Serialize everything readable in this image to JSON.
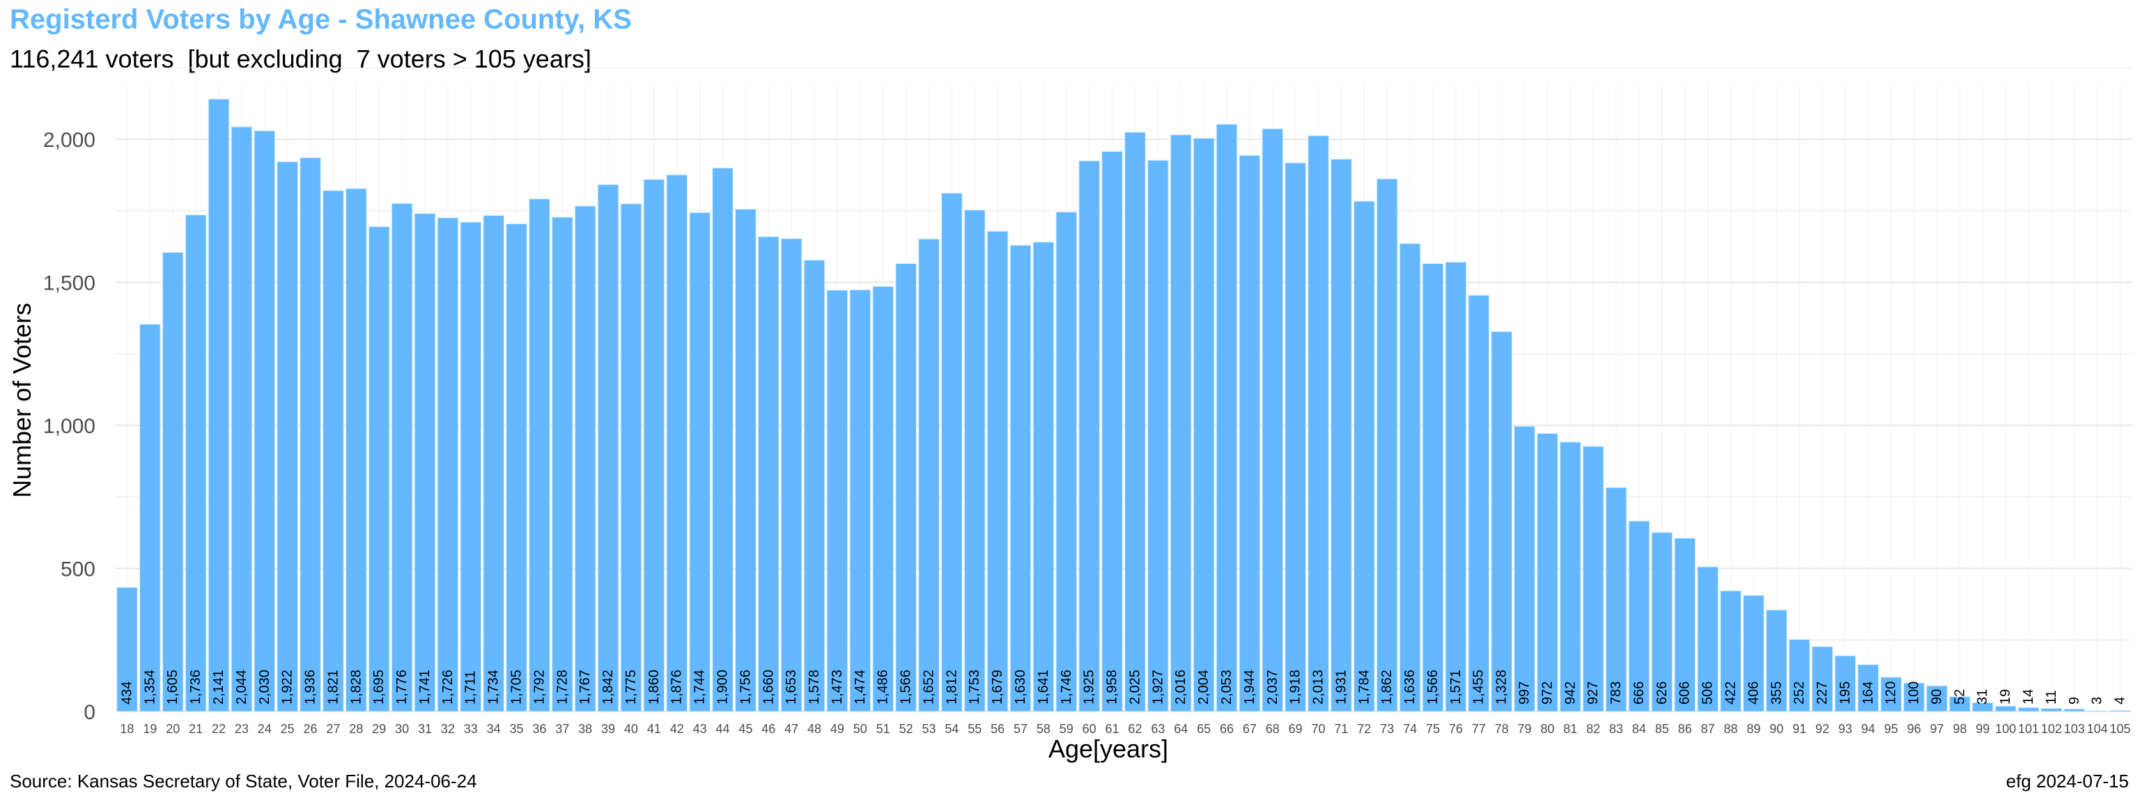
{
  "title": "Registerd Voters by Age - Shawnee County, KS",
  "subtitle": "116,241 voters  [but excluding  7 voters > 105 years]",
  "caption_left": "Source:  Kansas Secretary of State, Voter File, 2024-06-24",
  "caption_right": "efg 2024-07-15",
  "colors": {
    "bar": "#63B8FF",
    "grid": "#E6E6E6",
    "axis_text": "#4D4D4D",
    "title": "#63B8FF"
  },
  "chart_data": {
    "type": "bar",
    "xlabel": "Age[years]",
    "ylabel": "Number of Voters",
    "ylim": [
      0,
      2200
    ],
    "yticks": [
      0,
      500,
      1000,
      1500,
      2000
    ],
    "ytick_labels": [
      "0",
      "500",
      "1,000",
      "1,500",
      "2,000"
    ],
    "grid": true,
    "categories": [
      "18",
      "19",
      "20",
      "21",
      "22",
      "23",
      "24",
      "25",
      "26",
      "27",
      "28",
      "29",
      "30",
      "31",
      "32",
      "33",
      "34",
      "35",
      "36",
      "37",
      "38",
      "39",
      "40",
      "41",
      "42",
      "43",
      "44",
      "45",
      "46",
      "47",
      "48",
      "49",
      "50",
      "51",
      "52",
      "53",
      "54",
      "55",
      "56",
      "57",
      "58",
      "59",
      "60",
      "61",
      "62",
      "63",
      "64",
      "65",
      "66",
      "67",
      "68",
      "69",
      "70",
      "71",
      "72",
      "73",
      "74",
      "75",
      "76",
      "77",
      "78",
      "79",
      "80",
      "81",
      "82",
      "83",
      "84",
      "85",
      "86",
      "87",
      "88",
      "89",
      "90",
      "91",
      "92",
      "93",
      "94",
      "95",
      "96",
      "97",
      "98",
      "99",
      "100",
      "101",
      "102",
      "103",
      "104",
      "105"
    ],
    "values": [
      434,
      1354,
      1605,
      1736,
      2141,
      2044,
      2030,
      1922,
      1936,
      1821,
      1828,
      1695,
      1776,
      1741,
      1726,
      1711,
      1734,
      1705,
      1792,
      1728,
      1767,
      1842,
      1775,
      1860,
      1876,
      1744,
      1900,
      1756,
      1660,
      1653,
      1578,
      1473,
      1474,
      1486,
      1566,
      1652,
      1812,
      1753,
      1679,
      1630,
      1641,
      1746,
      1925,
      1958,
      2025,
      1927,
      2016,
      2004,
      2053,
      1944,
      2037,
      1918,
      2013,
      1931,
      1784,
      1862,
      1636,
      1566,
      1571,
      1455,
      1328,
      997,
      972,
      942,
      927,
      783,
      666,
      626,
      606,
      506,
      422,
      406,
      355,
      252,
      227,
      195,
      164,
      120,
      100,
      90,
      52,
      31,
      19,
      14,
      11,
      9,
      3,
      4
    ],
    "value_labels": [
      "434",
      "1,354",
      "1,605",
      "1,736",
      "2,141",
      "2,044",
      "2,030",
      "1,922",
      "1,936",
      "1,821",
      "1,828",
      "1,695",
      "1,776",
      "1,741",
      "1,726",
      "1,711",
      "1,734",
      "1,705",
      "1,792",
      "1,728",
      "1,767",
      "1,842",
      "1,775",
      "1,860",
      "1,876",
      "1,744",
      "1,900",
      "1,756",
      "1,660",
      "1,653",
      "1,578",
      "1,473",
      "1,474",
      "1,486",
      "1,566",
      "1,652",
      "1,812",
      "1,753",
      "1,679",
      "1,630",
      "1,641",
      "1,746",
      "1,925",
      "1,958",
      "2,025",
      "1,927",
      "2,016",
      "2,004",
      "2,053",
      "1,944",
      "2,037",
      "1,918",
      "2,013",
      "1,931",
      "1,784",
      "1,862",
      "1,636",
      "1,566",
      "1,571",
      "1,455",
      "1,328",
      "997",
      "972",
      "942",
      "927",
      "783",
      "666",
      "626",
      "606",
      "506",
      "422",
      "406",
      "355",
      "252",
      "227",
      "195",
      "164",
      "120",
      "100",
      "90",
      "52",
      "31",
      "19",
      "14",
      "11",
      "9",
      "3",
      "4"
    ]
  }
}
